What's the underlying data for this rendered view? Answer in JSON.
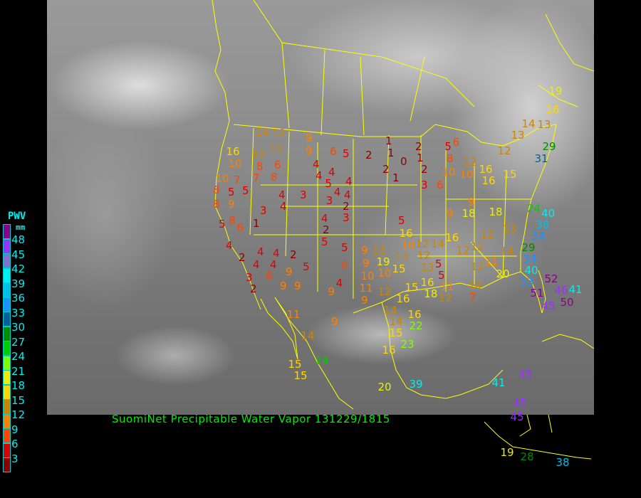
{
  "title": "SuomiNet Precipitable Water Vapor 131229/1815",
  "legend": {
    "title": "PWV",
    "unit": "mm",
    "labels": [
      "48",
      "45",
      "42",
      "39",
      "36",
      "33",
      "30",
      "27",
      "24",
      "21",
      "18",
      "15",
      "12",
      "9",
      "6",
      "3"
    ],
    "colors": [
      "#8b008b",
      "#9b30ff",
      "#8470d0",
      "#00eeee",
      "#00bfee",
      "#1e90ff",
      "#00609b",
      "#008b00",
      "#00cd00",
      "#7fff00",
      "#eeee00",
      "#ffd700",
      "#cd8500",
      "#ff8000",
      "#ff4500",
      "#dd0000",
      "#8b0000"
    ]
  },
  "boundary_color": "#ffff00",
  "stations": [
    19,
    16,
    14,
    13,
    13,
    12,
    29,
    31,
    14,
    12,
    9,
    9,
    6,
    5,
    2,
    1,
    1,
    0,
    2,
    1,
    2,
    2,
    1,
    3,
    6,
    8,
    5,
    6,
    10,
    10,
    12,
    16,
    15,
    16,
    16,
    10,
    12,
    12,
    8,
    6,
    7,
    8,
    4,
    4,
    4,
    5,
    4,
    10,
    7,
    5,
    5,
    4,
    3,
    4,
    3,
    4,
    2,
    4,
    8,
    8,
    9,
    3,
    1,
    5,
    8,
    6,
    4,
    2,
    5,
    3,
    5,
    16,
    10,
    12,
    14,
    16,
    9,
    9,
    18,
    18,
    13,
    12,
    12,
    12,
    14,
    29,
    34,
    38,
    40,
    24,
    4,
    2,
    4,
    4,
    4,
    2,
    4,
    5,
    9,
    6,
    5,
    6,
    9,
    13,
    9,
    19,
    10,
    10,
    15,
    13,
    12,
    5,
    5,
    13,
    12,
    11,
    20,
    34,
    40,
    33,
    52,
    51,
    46,
    45,
    50,
    41,
    2,
    3,
    9,
    9,
    9,
    4,
    9,
    11,
    12,
    15,
    16,
    18,
    11,
    12,
    14,
    7,
    16,
    11,
    9,
    14,
    14,
    15,
    16,
    22,
    23,
    16,
    14,
    24,
    15,
    15,
    20,
    39,
    41,
    45,
    45,
    45,
    19,
    28,
    38
  ]
}
